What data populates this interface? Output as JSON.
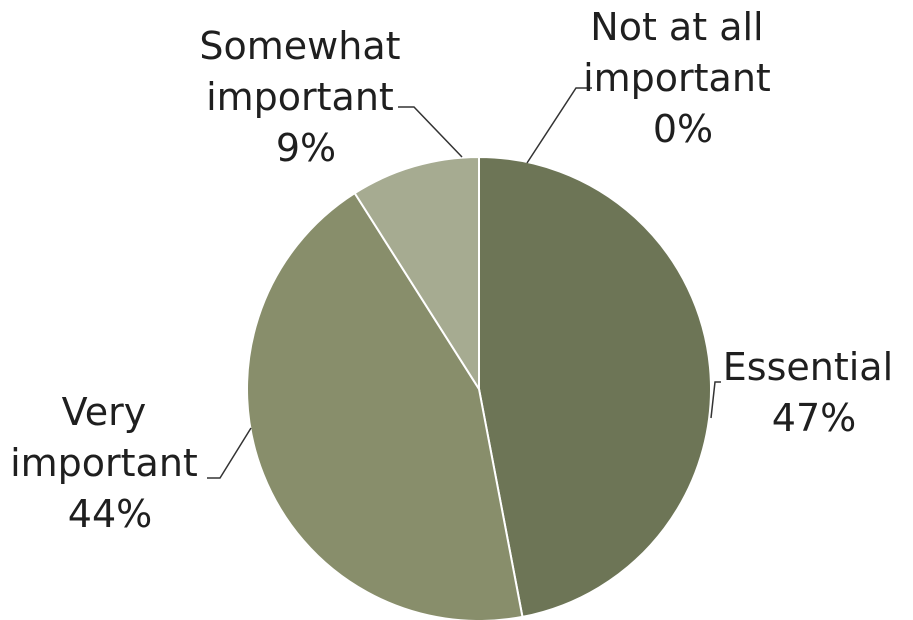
{
  "chart_data": {
    "type": "pie",
    "slices": [
      {
        "label": "Essential",
        "value": 47,
        "value_label": "47%",
        "color": "#6d7556"
      },
      {
        "label": "Very important",
        "value": 44,
        "value_label": "44%",
        "color": "#888e6b"
      },
      {
        "label": "Somewhat important",
        "value": 9,
        "value_label": "9%",
        "color": "#a6ab91"
      },
      {
        "label": "Not at all important",
        "value": 0,
        "value_label": "0%",
        "color": "#c4c7b4"
      }
    ],
    "label_lines": {
      "essential": [
        "Essential",
        "47%"
      ],
      "very_important": [
        "Very",
        "important",
        "44%"
      ],
      "somewhat_important": [
        "Somewhat",
        "important",
        "9%"
      ],
      "not_at_all_important": [
        "Not at all",
        "important",
        "0%"
      ]
    }
  }
}
